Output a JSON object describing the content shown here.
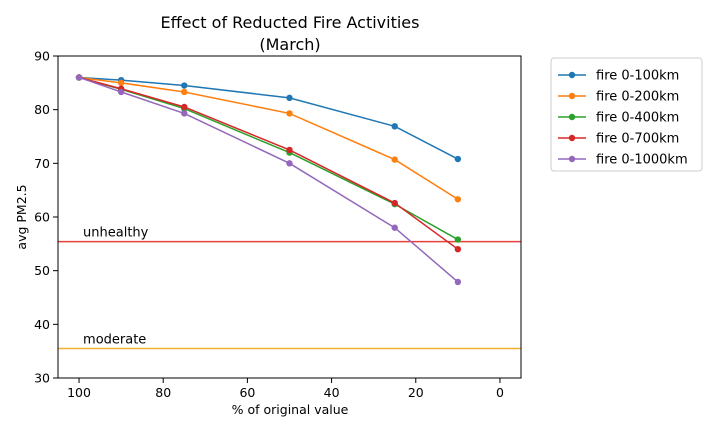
{
  "chart_data": {
    "type": "line",
    "title": "Effect of Reducted Fire Activities",
    "subtitle": "(March)",
    "xlabel": "% of original value",
    "ylabel": "avg PM2.5",
    "xlim": [
      105,
      -5
    ],
    "ylim": [
      30,
      90
    ],
    "x_ticks": [
      100,
      80,
      60,
      40,
      20,
      0
    ],
    "y_ticks": [
      30,
      40,
      50,
      60,
      70,
      80,
      90
    ],
    "grid": false,
    "legend_position": "outside-right",
    "x": [
      100,
      90,
      75,
      50,
      25,
      10
    ],
    "series": [
      {
        "name": "fire 0-100km",
        "color": "#1f77b4",
        "values": [
          86.0,
          85.5,
          84.5,
          82.2,
          76.9,
          70.8
        ]
      },
      {
        "name": "fire 0-200km",
        "color": "#ff7f0e",
        "values": [
          86.0,
          85.0,
          83.3,
          79.3,
          70.7,
          63.3
        ]
      },
      {
        "name": "fire 0-400km",
        "color": "#2ca02c",
        "values": [
          86.0,
          83.8,
          80.2,
          72.0,
          62.4,
          55.8
        ]
      },
      {
        "name": "fire 0-700km",
        "color": "#d62728",
        "values": [
          86.0,
          83.9,
          80.5,
          72.5,
          62.6,
          54.0
        ]
      },
      {
        "name": "fire 0-1000km",
        "color": "#9467bd",
        "values": [
          86.0,
          83.3,
          79.3,
          70.0,
          58.0,
          47.9
        ]
      }
    ],
    "reference_lines": [
      {
        "label": "unhealthy",
        "y": 55.4,
        "color": "#e8413c"
      },
      {
        "label": "moderate",
        "y": 35.5,
        "color": "#f2b134"
      }
    ]
  }
}
